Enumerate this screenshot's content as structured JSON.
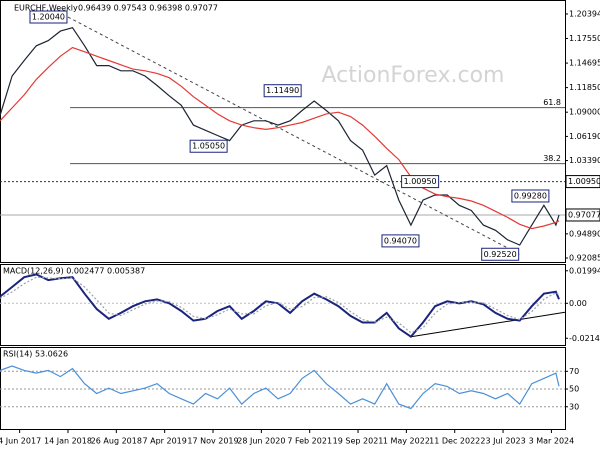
{
  "chart_data": [
    {
      "type": "line",
      "title": "EURCHF,Weekly",
      "subtitle": "0.96439 0.97543 0.96398 0.97077",
      "watermark": "ActionForex.com",
      "x": [
        "2017-03-05",
        "2017-04-30",
        "2017-06-25",
        "2017-08-20",
        "2017-10-15",
        "2017-12-10",
        "2018-02-04",
        "2018-04-01",
        "2018-05-27",
        "2018-07-22",
        "2018-09-16",
        "2018-11-11",
        "2019-01-06",
        "2019-03-03",
        "2019-04-28",
        "2019-06-23",
        "2019-08-18",
        "2019-10-13",
        "2019-12-08",
        "2020-02-02",
        "2020-03-29",
        "2020-05-24",
        "2020-07-19",
        "2020-09-13",
        "2020-11-08",
        "2021-01-03",
        "2021-02-28",
        "2021-04-25",
        "2021-06-20",
        "2021-08-15",
        "2021-10-10",
        "2021-12-05",
        "2022-01-30",
        "2022-03-27",
        "2022-05-22",
        "2022-07-17",
        "2022-09-11",
        "2022-11-06",
        "2023-01-01",
        "2023-02-26",
        "2023-04-23",
        "2023-06-18",
        "2023-08-13",
        "2023-10-08",
        "2023-12-03",
        "2024-01-28",
        "2024-03-24",
        "2024-04-07"
      ],
      "xlim": [
        "2017-03-05",
        "2024-05-05"
      ],
      "xticks": [
        {
          "value": "2017-06-04",
          "label": "4 Jun 2017"
        },
        {
          "value": "2018-01-14",
          "label": "14 Jan 2018"
        },
        {
          "value": "2018-08-26",
          "label": "26 Aug 2018"
        },
        {
          "value": "2019-04-07",
          "label": "7 Apr 2019"
        },
        {
          "value": "2019-11-17",
          "label": "17 Nov 2019"
        },
        {
          "value": "2020-06-28",
          "label": "28 Jun 2020"
        },
        {
          "value": "2021-02-07",
          "label": "7 Feb 2021"
        },
        {
          "value": "2021-09-19",
          "label": "19 Sep 2021"
        },
        {
          "value": "2022-05-01",
          "label": "1 May 2022"
        },
        {
          "value": "2022-12-11",
          "label": "11 Dec 2022"
        },
        {
          "value": "2023-07-23",
          "label": "23 Jul 2023"
        },
        {
          "value": "2024-03-03",
          "label": "3 Mar 2024"
        }
      ],
      "series": [
        {
          "color": "#1c2533",
          "values": [
            1.086,
            1.132,
            1.15,
            1.167,
            1.173,
            1.184,
            1.188,
            1.167,
            1.144,
            1.144,
            1.138,
            1.138,
            1.132,
            1.121,
            1.109,
            1.098,
            1.075,
            1.069,
            1.063,
            1.057,
            1.075,
            1.08,
            1.08,
            1.075,
            1.08,
            1.092,
            1.103,
            1.092,
            1.08,
            1.057,
            1.046,
            1.017,
            1.028,
            0.988,
            0.959,
            0.988,
            0.994,
            0.994,
            0.982,
            0.976,
            0.959,
            0.953,
            0.942,
            0.936,
            0.959,
            0.982,
            0.959,
            0.97077
          ]
        },
        {
          "color": "#e53935",
          "values": [
            1.08,
            1.095,
            1.11,
            1.128,
            1.142,
            1.155,
            1.165,
            1.16,
            1.155,
            1.15,
            1.145,
            1.14,
            1.138,
            1.135,
            1.13,
            1.12,
            1.108,
            1.098,
            1.088,
            1.08,
            1.075,
            1.072,
            1.07,
            1.072,
            1.075,
            1.078,
            1.083,
            1.088,
            1.09,
            1.085,
            1.075,
            1.062,
            1.048,
            1.035,
            1.015,
            1.002,
            0.995,
            0.992,
            0.99,
            0.987,
            0.982,
            0.975,
            0.968,
            0.96,
            0.955,
            0.958,
            0.962,
            0.964
          ]
        }
      ],
      "ylim": [
        0.91623,
        1.21897
      ],
      "yticks": [
        1.20394,
        {
          "value": 1.1755,
          "label": "1.17550"
        },
        1.14695,
        {
          "value": 1.1185,
          "label": "1.11850"
        },
        {
          "value": 1.09,
          "label": "1.09000"
        },
        {
          "value": 1.0619,
          "label": "1.06190"
        },
        {
          "value": 1.0339,
          "label": "1.03390"
        },
        {
          "value": 0.9489,
          "label": "0.94890"
        },
        0.92085
      ],
      "levels": [
        {
          "value": 1.0095,
          "label": "1.00950"
        },
        0.97077
      ],
      "fibonacci": [
        {
          "name": "61.8",
          "value": 1.0953
        },
        {
          "name": "38.2",
          "value": 1.0303
        }
      ],
      "annotations": [
        {
          "text": "1.20040",
          "x": "2018-01-14",
          "y": 1.2004
        },
        {
          "text": "1.05050",
          "x": "2020-01-26",
          "y": 1.0505
        },
        {
          "text": "1.11490",
          "x": "2021-01-03",
          "y": 1.1149
        },
        {
          "text": "1.00950",
          "x": "2022-10-02",
          "y": 1.0095
        },
        {
          "text": "0.94070",
          "x": "2022-07-03",
          "y": 0.9407
        },
        {
          "text": "0.92520",
          "x": "2023-10-08",
          "y": 0.9252
        },
        {
          "text": "0.99280",
          "x": "2024-02-25",
          "y": 0.9928
        }
      ],
      "trendline": {
        "x": [
          "2018-01-14",
          "2023-10-08"
        ],
        "values": [
          1.2004,
          0.9252
        ]
      }
    },
    {
      "type": "line",
      "title": "MACD(12,26,9) 0.002477 0.005387",
      "series": [
        {
          "color": "#1a237e",
          "values": [
            0.0041,
            0.01,
            0.016,
            0.0177,
            0.0142,
            0.0154,
            0.016,
            0.0059,
            -0.0035,
            -0.0095,
            -0.0059,
            -0.0018,
            0.0012,
            0.0024,
            0.0,
            -0.0047,
            -0.0106,
            -0.0095,
            -0.0047,
            -0.0018,
            -0.0095,
            -0.0047,
            0.0012,
            0.0,
            -0.0059,
            0.0012,
            0.0059,
            0.0024,
            -0.0018,
            -0.0077,
            -0.0118,
            -0.0118,
            -0.0059,
            -0.0154,
            -0.0205,
            -0.0118,
            -0.0018,
            0.0012,
            0.0,
            0.0012,
            -0.0006,
            -0.0059,
            -0.0095,
            -0.0106,
            -0.0018,
            0.0059,
            0.0071,
            0.002477
          ]
        },
        {
          "color": "#9aa0a6",
          "values": [
            0.003,
            0.007,
            0.012,
            0.016,
            0.0155,
            0.015,
            0.0155,
            0.01,
            0.002,
            -0.006,
            -0.0075,
            -0.004,
            -0.0005,
            0.0015,
            0.001,
            -0.0025,
            -0.008,
            -0.0095,
            -0.007,
            -0.0035,
            -0.0065,
            -0.0065,
            -0.0015,
            0.0005,
            -0.0035,
            -0.002,
            0.0035,
            0.004,
            0.0005,
            -0.005,
            -0.01,
            -0.0115,
            -0.0085,
            -0.012,
            -0.018,
            -0.015,
            -0.006,
            -0.0005,
            0.0005,
            0.0008,
            0.0002,
            -0.0035,
            -0.0075,
            -0.01,
            -0.005,
            0.0025,
            0.0065,
            0.005387
          ]
        }
      ],
      "ylim": [
        -0.02557,
        0.02349
      ],
      "yticks": [
        0.019943,
        {
          "value": 0,
          "label": "0.00"
        },
        -0.021434
      ],
      "trendline": {
        "x": [
          "2022-05-22",
          "2024-05-05"
        ],
        "values": [
          -0.0205,
          -0.0055
        ]
      }
    },
    {
      "type": "line",
      "title": "RSI(14) 53.0626",
      "series": [
        {
          "color": "#4a90d9",
          "values": [
            71,
            76,
            71,
            68,
            71,
            64,
            73,
            56,
            45,
            51,
            45,
            48,
            51,
            56,
            45,
            39,
            33,
            45,
            39,
            51,
            33,
            45,
            51,
            39,
            45,
            62,
            71,
            56,
            45,
            33,
            39,
            33,
            56,
            33,
            28,
            45,
            56,
            53,
            45,
            48,
            45,
            39,
            45,
            33,
            56,
            62,
            68,
            53.0626
          ]
        }
      ],
      "ylim": [
        4.9,
        96.3
      ],
      "yticks": [
        70,
        50,
        30
      ],
      "grid": true
    }
  ]
}
